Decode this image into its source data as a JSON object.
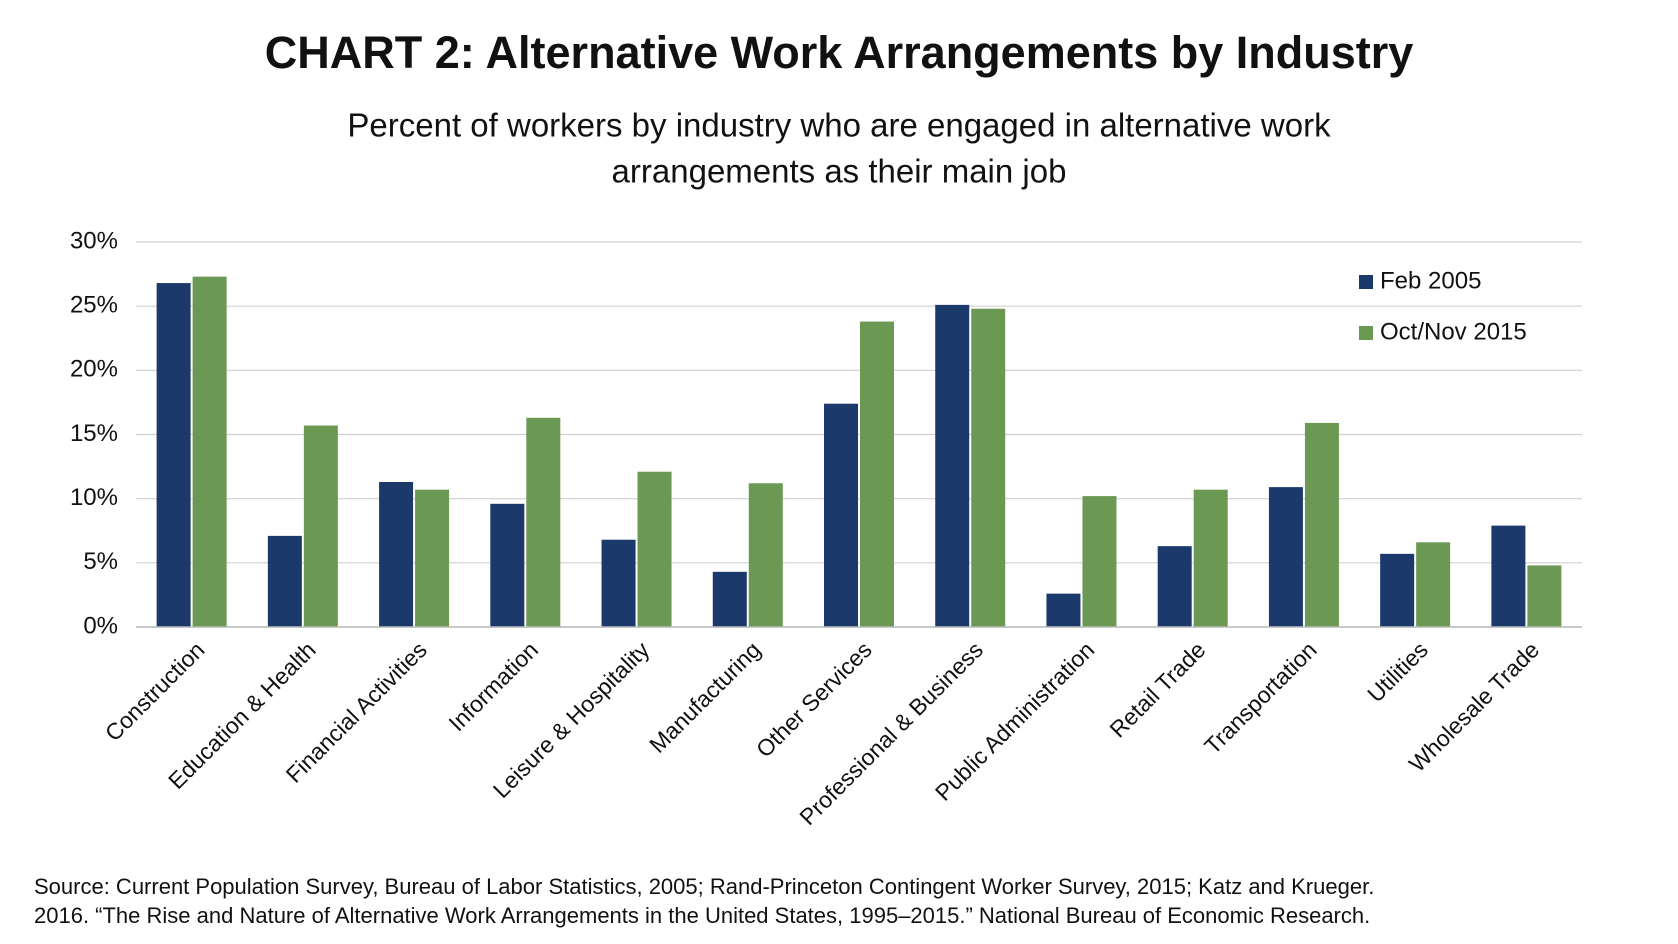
{
  "chart_data": {
    "type": "bar",
    "title": "CHART 2: Alternative Work Arrangements by Industry",
    "subtitle": [
      "Percent of workers by industry who are engaged in alternative work",
      "arrangements as their main job"
    ],
    "categories": [
      "Construction",
      "Education & Health",
      "Financial Activities",
      "Information",
      "Leisure & Hospitality",
      "Manufacturing",
      "Other Services",
      "Professional & Business",
      "Public Administration",
      "Retail Trade",
      "Transportation",
      "Utilities",
      "Wholesale Trade"
    ],
    "series": [
      {
        "name": "Feb 2005",
        "color": "#1b3a6b",
        "values": [
          26.8,
          7.1,
          11.3,
          9.6,
          6.8,
          4.3,
          17.4,
          25.1,
          2.6,
          6.3,
          10.9,
          5.7,
          7.9
        ]
      },
      {
        "name": "Oct/Nov 2015",
        "color": "#6b9852",
        "values": [
          27.3,
          15.7,
          10.7,
          16.3,
          12.1,
          11.2,
          23.8,
          24.8,
          10.2,
          10.7,
          15.9,
          6.6,
          4.8
        ]
      }
    ],
    "ylim": [
      0,
      30
    ],
    "yticks": [
      {
        "value": 0,
        "label": "0%"
      },
      {
        "value": 5,
        "label": "5%"
      },
      {
        "value": 10,
        "label": "10%"
      },
      {
        "value": 15,
        "label": "15%"
      },
      {
        "value": 20,
        "label": "20%"
      },
      {
        "value": 25,
        "label": "25%"
      },
      {
        "value": 30,
        "label": "30%"
      }
    ],
    "grid": true,
    "legend": "top-right",
    "source": [
      "Source: Current Population Survey, Bureau of Labor Statistics, 2005; Rand-Princeton Contingent Worker Survey, 2015; Katz and Krueger.",
      "2016. “The Rise and Nature of Alternative Work Arrangements in the United States, 1995–2015.” National Bureau of Economic Research."
    ]
  }
}
